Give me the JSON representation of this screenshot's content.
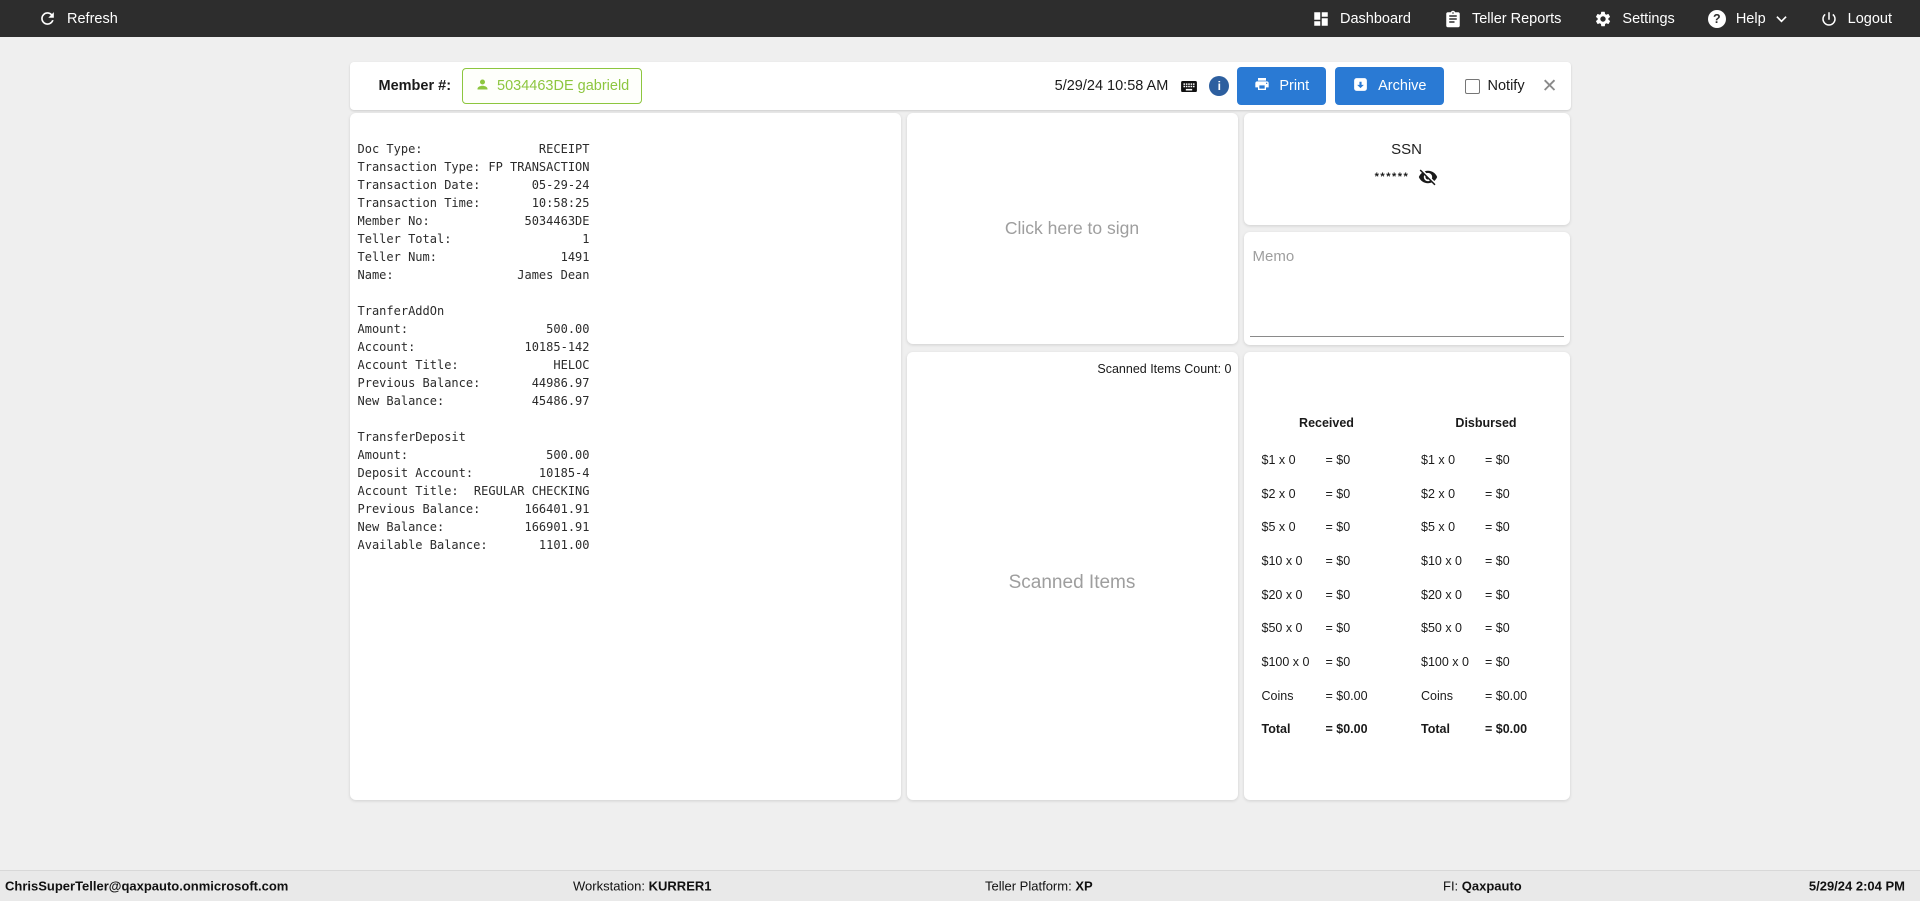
{
  "topbar": {
    "refresh_label": "Refresh",
    "dashboard_label": "Dashboard",
    "teller_reports_label": "Teller Reports",
    "settings_label": "Settings",
    "help_label": "Help",
    "logout_label": "Logout"
  },
  "member_bar": {
    "member_label": "Member #:",
    "member_chip_label": "5034463DE gabrield",
    "datetime": "5/29/24 10:58 AM",
    "print_label": "Print",
    "archive_label": "Archive",
    "notify_label": "Notify",
    "notify_checked": false
  },
  "receipt": {
    "lines": [
      {
        "label": "Doc Type:",
        "value": "RECEIPT"
      },
      {
        "label": "Transaction Type:",
        "value": "FP TRANSACTION"
      },
      {
        "label": "Transaction Date:",
        "value": "05-29-24"
      },
      {
        "label": "Transaction Time:",
        "value": "10:58:25"
      },
      {
        "label": "Member No:",
        "value": "5034463DE"
      },
      {
        "label": "Teller Total:",
        "value": "1"
      },
      {
        "label": "Teller Num:",
        "value": "1491"
      },
      {
        "label": "Name:",
        "value": "James Dean"
      },
      {
        "label": "",
        "value": ""
      },
      {
        "label": "TranferAddOn",
        "value": ""
      },
      {
        "label": "Amount:",
        "value": "500.00"
      },
      {
        "label": "Account:",
        "value": "10185-142"
      },
      {
        "label": "Account Title:",
        "value": "HELOC"
      },
      {
        "label": "Previous Balance:",
        "value": "44986.97"
      },
      {
        "label": "New Balance:",
        "value": "45486.97"
      },
      {
        "label": "",
        "value": ""
      },
      {
        "label": "TransferDeposit",
        "value": ""
      },
      {
        "label": "Amount:",
        "value": "500.00"
      },
      {
        "label": "Deposit Account:",
        "value": "10185-4"
      },
      {
        "label": "Account Title:",
        "value": "REGULAR CHECKING"
      },
      {
        "label": "Previous Balance:",
        "value": "166401.91"
      },
      {
        "label": "New Balance:",
        "value": "166901.91"
      },
      {
        "label": "Available Balance:",
        "value": "1101.00"
      }
    ]
  },
  "signature_panel": {
    "placeholder": "Click here to sign"
  },
  "scanned_panel": {
    "count_text": "Scanned Items Count: 0",
    "placeholder": "Scanned Items"
  },
  "ssn_panel": {
    "title": "SSN",
    "masked_value": "******"
  },
  "memo_panel": {
    "placeholder": "Memo",
    "value": ""
  },
  "cash_panel": {
    "received_header": "Received",
    "disbursed_header": "Disbursed",
    "rows": [
      {
        "label": "$1 x 0",
        "received": "= $0",
        "disbursed": "= $0",
        "bold": false
      },
      {
        "label": "$2 x 0",
        "received": "= $0",
        "disbursed": "= $0",
        "bold": false
      },
      {
        "label": "$5 x 0",
        "received": "= $0",
        "disbursed": "= $0",
        "bold": false
      },
      {
        "label": "$10 x 0",
        "received": "= $0",
        "disbursed": "= $0",
        "bold": false
      },
      {
        "label": "$20 x 0",
        "received": "= $0",
        "disbursed": "= $0",
        "bold": false
      },
      {
        "label": "$50 x 0",
        "received": "= $0",
        "disbursed": "= $0",
        "bold": false
      },
      {
        "label": "$100 x 0",
        "received": "= $0",
        "disbursed": "= $0",
        "bold": false
      },
      {
        "label": "Coins",
        "received": "= $0.00",
        "disbursed": "= $0.00",
        "bold": false
      },
      {
        "label": "Total",
        "received": "= $0.00",
        "disbursed": "= $0.00",
        "bold": true
      }
    ]
  },
  "footer": {
    "user": "ChrisSuperTeller@qaxpauto.onmicrosoft.com",
    "workstation_label": "Workstation:",
    "workstation_value": "KURRER1",
    "platform_label": "Teller Platform:",
    "platform_value": "XP",
    "fi_label": "FI:",
    "fi_value": "Qaxpauto",
    "datetime": "5/29/24 2:04 PM"
  },
  "colors": {
    "topbar_bg": "#2d2d2d",
    "accent_blue": "#2a7ad4",
    "info_blue": "#2d5f9f",
    "member_green": "#8dc63f",
    "placeholder_gray": "#9e9e9e"
  }
}
